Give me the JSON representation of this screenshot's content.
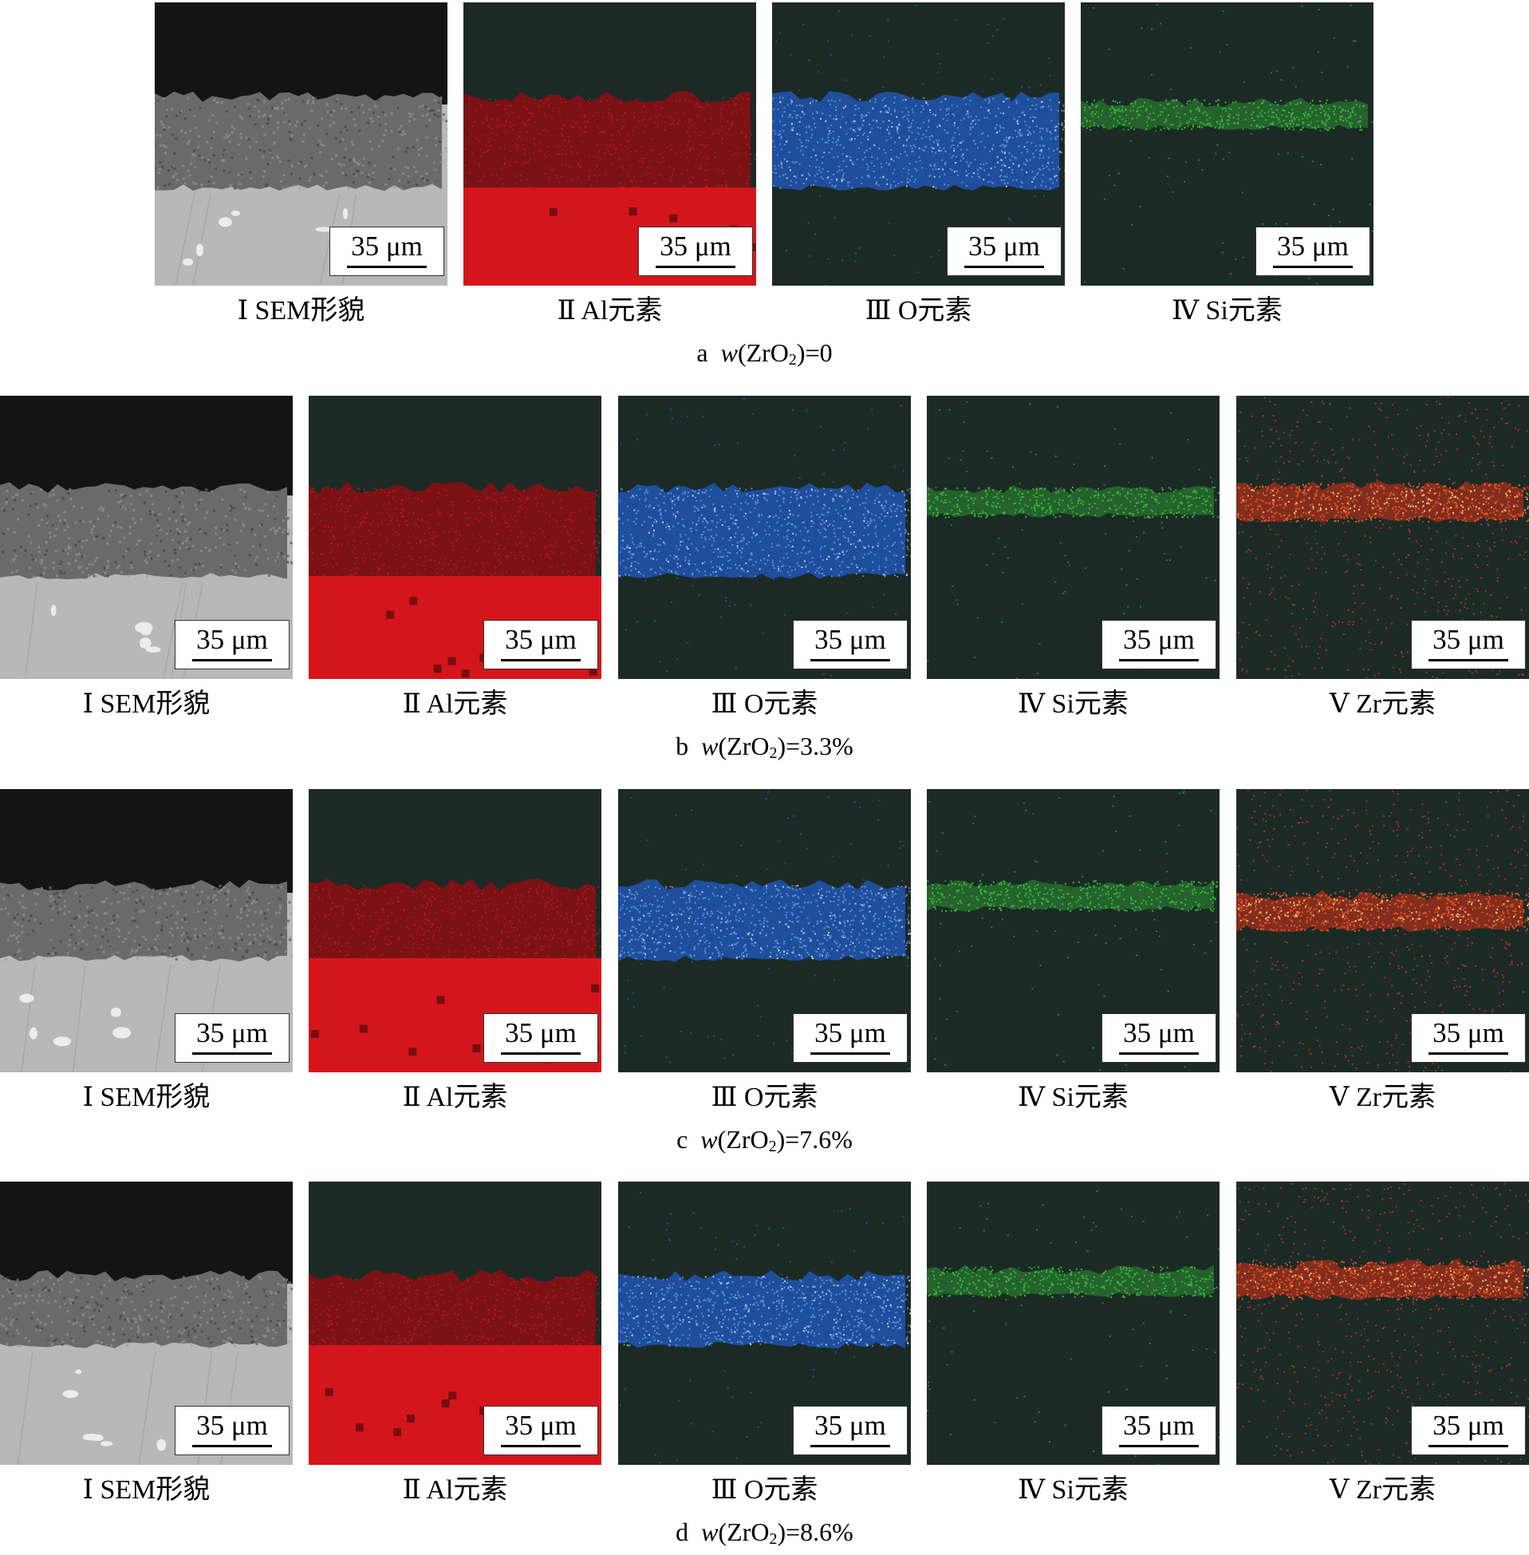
{
  "figure": {
    "scale_label": "35 μm",
    "rows": [
      {
        "caption": {
          "letter": "a",
          "var": "w",
          "formula": "(ZrO",
          "sub": "2",
          "value": ")=0"
        },
        "panels": [
          {
            "kind": "sem",
            "label": "Ⅰ SEM形貌"
          },
          {
            "kind": "al",
            "label": "Ⅱ Al元素"
          },
          {
            "kind": "o",
            "label": "Ⅲ O元素"
          },
          {
            "kind": "si",
            "label": "Ⅳ Si元素"
          }
        ]
      },
      {
        "caption": {
          "letter": "b",
          "var": "w",
          "formula": "(ZrO",
          "sub": "2",
          "value": ")=3.3%"
        },
        "panels": [
          {
            "kind": "sem",
            "label": "Ⅰ SEM形貌"
          },
          {
            "kind": "al",
            "label": "Ⅱ Al元素"
          },
          {
            "kind": "o",
            "label": "Ⅲ O元素"
          },
          {
            "kind": "si",
            "label": "Ⅳ Si元素"
          },
          {
            "kind": "zr",
            "label": "Ⅴ Zr元素"
          }
        ]
      },
      {
        "caption": {
          "letter": "c",
          "var": "w",
          "formula": "(ZrO",
          "sub": "2",
          "value": ")=7.6%"
        },
        "panels": [
          {
            "kind": "sem",
            "label": "Ⅰ SEM形貌"
          },
          {
            "kind": "al",
            "label": "Ⅱ Al元素"
          },
          {
            "kind": "o",
            "label": "Ⅲ O元素"
          },
          {
            "kind": "si",
            "label": "Ⅳ Si元素"
          },
          {
            "kind": "zr",
            "label": "Ⅴ Zr元素"
          }
        ]
      },
      {
        "caption": {
          "letter": "d",
          "var": "w",
          "formula": "(ZrO",
          "sub": "2",
          "value": ")=8.6%"
        },
        "panels": [
          {
            "kind": "sem",
            "label": "Ⅰ SEM形貌"
          },
          {
            "kind": "al",
            "label": "Ⅱ Al元素"
          },
          {
            "kind": "o",
            "label": "Ⅲ O元素"
          },
          {
            "kind": "si",
            "label": "Ⅳ Si元素"
          },
          {
            "kind": "zr",
            "label": "Ⅴ Zr元素"
          }
        ]
      }
    ],
    "colors": {
      "sem_dark": "#141414",
      "sem_coating": "#6a6a6a",
      "sem_substrate": "#b8b8b8",
      "map_background": "#1c2a26",
      "al": "#d4161c",
      "o": "#2e6cd0",
      "si": "#39c23a",
      "zr": "#e45a2a"
    }
  }
}
